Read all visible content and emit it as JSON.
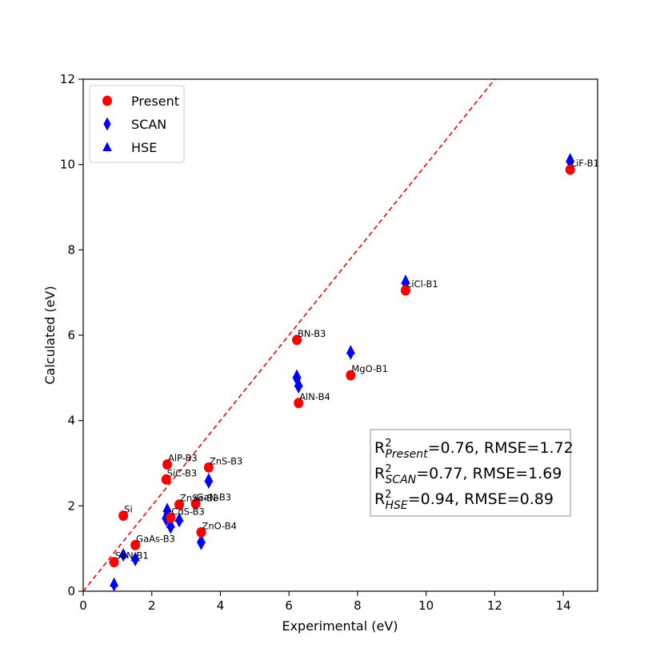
{
  "chart_data": {
    "type": "scatter",
    "title": "",
    "xlabel": "Experimental (eV)",
    "ylabel": "Calculated (eV)",
    "xlim": [
      0,
      15
    ],
    "ylim": [
      0,
      12
    ],
    "xticks": [
      0,
      2,
      4,
      6,
      8,
      10,
      12,
      14
    ],
    "yticks": [
      0,
      2,
      4,
      6,
      8,
      10,
      12
    ],
    "grid": false,
    "legend_position": "top-left",
    "reference_line": {
      "type": "y=x",
      "color": "#ff0000",
      "style": "dashed"
    },
    "series": [
      {
        "name": "Present",
        "marker": "circle",
        "color": "#ff0000",
        "points": [
          {
            "x": 0.9,
            "y": 0.68
          },
          {
            "x": 1.17,
            "y": 1.77
          },
          {
            "x": 1.52,
            "y": 1.08
          },
          {
            "x": 2.42,
            "y": 2.62
          },
          {
            "x": 2.45,
            "y": 2.97
          },
          {
            "x": 2.55,
            "y": 1.72
          },
          {
            "x": 2.8,
            "y": 2.03
          },
          {
            "x": 3.28,
            "y": 2.05
          },
          {
            "x": 3.44,
            "y": 1.38
          },
          {
            "x": 3.66,
            "y": 2.9
          },
          {
            "x": 6.23,
            "y": 5.89
          },
          {
            "x": 6.28,
            "y": 4.41
          },
          {
            "x": 7.8,
            "y": 5.06
          },
          {
            "x": 9.4,
            "y": 7.05
          },
          {
            "x": 14.2,
            "y": 9.88
          }
        ]
      },
      {
        "name": "SCAN",
        "marker": "diamond",
        "color": "#0000ff",
        "points": [
          {
            "x": 0.9,
            "y": 0.15
          },
          {
            "x": 1.17,
            "y": 0.85
          },
          {
            "x": 1.52,
            "y": 0.74
          },
          {
            "x": 2.42,
            "y": 1.68
          },
          {
            "x": 2.45,
            "y": 1.82
          },
          {
            "x": 2.55,
            "y": 1.5
          },
          {
            "x": 2.8,
            "y": 1.65
          },
          {
            "x": 3.28,
            "y": 2.06
          },
          {
            "x": 3.44,
            "y": 1.12
          },
          {
            "x": 3.66,
            "y": 2.56
          },
          {
            "x": 6.23,
            "y": 4.97
          },
          {
            "x": 6.28,
            "y": 4.79
          },
          {
            "x": 7.8,
            "y": 5.58
          },
          {
            "x": 9.4,
            "y": 7.2
          },
          {
            "x": 14.2,
            "y": 10.05
          }
        ]
      },
      {
        "name": "HSE",
        "marker": "triangle",
        "color": "#0000ff",
        "points": [
          {
            "x": 0.9,
            "y": 0.2
          },
          {
            "x": 1.17,
            "y": 0.88
          },
          {
            "x": 1.52,
            "y": 0.8
          },
          {
            "x": 2.42,
            "y": 1.78
          },
          {
            "x": 2.45,
            "y": 1.95
          },
          {
            "x": 2.55,
            "y": 1.58
          },
          {
            "x": 2.8,
            "y": 1.72
          },
          {
            "x": 3.28,
            "y": 2.12
          },
          {
            "x": 3.44,
            "y": 1.22
          },
          {
            "x": 3.66,
            "y": 2.65
          },
          {
            "x": 6.23,
            "y": 5.08
          },
          {
            "x": 6.28,
            "y": 4.88
          },
          {
            "x": 7.8,
            "y": 5.65
          },
          {
            "x": 9.4,
            "y": 7.3
          },
          {
            "x": 14.2,
            "y": 10.15
          }
        ]
      }
    ],
    "annotations": [
      {
        "text": "SnN-B1",
        "x": 0.9,
        "y": 0.68
      },
      {
        "text": "Si",
        "x": 1.17,
        "y": 1.77
      },
      {
        "text": "GaAs-B3",
        "x": 1.52,
        "y": 1.08
      },
      {
        "text": "SiC-B3",
        "x": 2.42,
        "y": 2.62
      },
      {
        "text": "AlP-B3",
        "x": 2.45,
        "y": 2.97
      },
      {
        "text": "CdS-B3",
        "x": 2.55,
        "y": 1.72
      },
      {
        "text": "ZnSe-B3",
        "x": 2.8,
        "y": 2.03
      },
      {
        "text": "GaN-B3",
        "x": 3.28,
        "y": 2.05
      },
      {
        "text": "ZnO-B4",
        "x": 3.44,
        "y": 1.38
      },
      {
        "text": "ZnS-B3",
        "x": 3.66,
        "y": 2.9
      },
      {
        "text": "BN-B3",
        "x": 6.23,
        "y": 5.89
      },
      {
        "text": "AlN-B4",
        "x": 6.28,
        "y": 4.41
      },
      {
        "text": "MgO-B1",
        "x": 7.8,
        "y": 5.06
      },
      {
        "text": "LiCl-B1",
        "x": 9.4,
        "y": 7.05
      },
      {
        "text": "LiF-B1",
        "x": 14.2,
        "y": 9.88
      }
    ],
    "stats": [
      {
        "R_label": "R",
        "exp": "2",
        "sub": "Present",
        "text": "=0.76, RMSE=1.72"
      },
      {
        "R_label": "R",
        "exp": "2",
        "sub": "SCAN",
        "text": "=0.77, RMSE=1.69"
      },
      {
        "R_label": "R",
        "exp": "2",
        "sub": "HSE",
        "text": "=0.94, RMSE=0.89"
      }
    ]
  }
}
